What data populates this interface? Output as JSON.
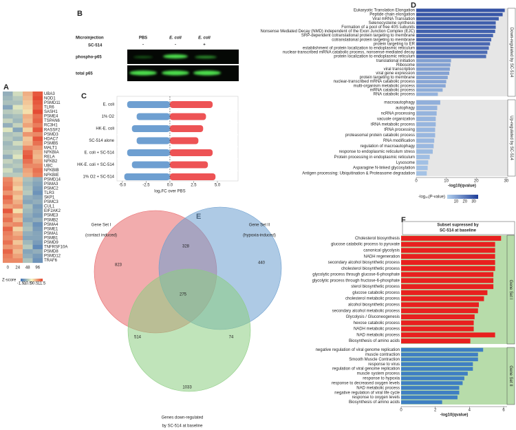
{
  "chart_data": [
    {
      "type": "heatmap",
      "label": "A",
      "rows": [
        "UBA3",
        "NOD1",
        "PSMD11",
        "TLR6",
        "SASH1",
        "PSME4",
        "TSPAN6",
        "RC3H1",
        "RASSF2",
        "PSMD3",
        "HDAC7",
        "PSMB5",
        "MALT1",
        "NFKBIA",
        "RELA",
        "NFKB2",
        "UBC",
        "NFKBIB",
        "NFKBIE",
        "PSMD14",
        "PSMA3",
        "PSMC2",
        "TLR3",
        "SKP1",
        "PSMC3",
        "CUL1",
        "EIF2AK2",
        "PSME3",
        "PSMB2",
        "PSMA4",
        "PSME1",
        "PSMA1",
        "PSMB1",
        "PSMD9",
        "TNFRSF10A",
        "PSMD8",
        "PSMD12",
        "TRAF6"
      ],
      "columns": [
        0,
        24,
        48,
        96
      ],
      "values": [
        [
          -0.8,
          -0.3,
          0.6,
          1.3
        ],
        [
          -0.7,
          -0.5,
          0.5,
          1.4
        ],
        [
          -0.6,
          -0.6,
          0.4,
          1.3
        ],
        [
          -0.9,
          -0.2,
          0.3,
          1.2
        ],
        [
          -0.5,
          -0.4,
          0.2,
          1.4
        ],
        [
          -0.7,
          -0.6,
          0.6,
          1.1
        ],
        [
          -0.4,
          -0.7,
          0.5,
          1.2
        ],
        [
          -0.8,
          -0.4,
          0.7,
          1.0
        ],
        [
          -0.2,
          -0.9,
          0.3,
          1.3
        ],
        [
          -0.6,
          -0.5,
          0.8,
          0.9
        ],
        [
          -0.5,
          -0.7,
          0.4,
          1.3
        ],
        [
          -0.7,
          -0.3,
          0.5,
          1.1
        ],
        [
          -0.6,
          -0.6,
          0.9,
          0.8
        ],
        [
          -0.5,
          -0.4,
          1.2,
          0.6
        ],
        [
          -0.8,
          -0.2,
          1.3,
          0.5
        ],
        [
          -0.4,
          -0.6,
          1.1,
          0.7
        ],
        [
          -0.6,
          -0.5,
          0.9,
          0.9
        ],
        [
          -0.3,
          -0.7,
          0.7,
          1.1
        ],
        [
          -0.5,
          -0.5,
          0.6,
          1.0
        ],
        [
          0.9,
          0.4,
          -0.6,
          -0.8
        ],
        [
          1.0,
          0.5,
          -0.7,
          -0.9
        ],
        [
          1.1,
          0.3,
          -0.6,
          -1.0
        ],
        [
          0.8,
          0.6,
          -0.5,
          -1.1
        ],
        [
          1.2,
          0.4,
          -0.8,
          -0.9
        ],
        [
          1.0,
          0.6,
          -0.9,
          -0.8
        ],
        [
          0.7,
          0.8,
          -0.6,
          -1.0
        ],
        [
          1.3,
          0.2,
          -0.7,
          -0.9
        ],
        [
          0.9,
          0.7,
          -0.8,
          -1.0
        ],
        [
          1.1,
          0.5,
          -0.9,
          -0.8
        ],
        [
          0.8,
          0.9,
          -0.7,
          -1.1
        ],
        [
          1.2,
          0.3,
          -0.6,
          -1.0
        ],
        [
          1.0,
          0.6,
          -0.8,
          -0.9
        ],
        [
          0.9,
          0.8,
          -0.9,
          -0.9
        ],
        [
          1.1,
          0.4,
          -0.7,
          -1.0
        ],
        [
          0.8,
          0.7,
          -0.5,
          -1.2
        ],
        [
          1.2,
          0.5,
          -0.9,
          -0.8
        ],
        [
          1.0,
          0.7,
          -0.8,
          -1.0
        ],
        [
          0.9,
          0.9,
          -0.6,
          -1.1
        ]
      ],
      "colorbar_label": "Z-score",
      "zlim": [
        -1.5,
        1.5
      ],
      "zticks": [
        -1.5,
        -1,
        -0.5,
        0,
        0.5,
        1,
        1.5
      ],
      "colormap": [
        "#3b6fb6",
        "#f7f7c0",
        "#e3402a"
      ]
    },
    {
      "type": "blot",
      "label": "B",
      "row_title": "Microinjection",
      "row_title_2": "SC-514",
      "lanes": [
        "PBS",
        "E. coli",
        "E. coli"
      ],
      "sc514": [
        "-",
        "-",
        "+"
      ],
      "bands": [
        "phospho-p65",
        "total p65"
      ]
    },
    {
      "type": "strip",
      "label": "C",
      "categories": [
        "E. coli",
        "1% O2",
        "HK-E. coli",
        "SC-514 alone",
        "E. coli + SC-514",
        "HK-E. coli + SC-514",
        "1% O2 + SC-514"
      ],
      "down_min": [
        -4.5,
        -3.5,
        -4,
        -3.5,
        -4.5,
        -4,
        -4.8
      ],
      "up_max": [
        4.5,
        3.8,
        3.5,
        3,
        4.5,
        4,
        4.8
      ],
      "down_color": "#3d7fc1",
      "up_color": "#e8282b",
      "xlim": [
        -5.5,
        7.1
      ],
      "xticks": [
        {
          "value": -5,
          "label": "-5.0"
        },
        -2.5,
        {
          "value": 0,
          "label": "0.0"
        },
        2.5,
        {
          "value": 5,
          "label": "5.0"
        }
      ],
      "xlabel": "log₂FC over PBS"
    },
    {
      "type": "bar",
      "orientation": "horizontal",
      "label": "D",
      "groups": [
        {
          "name": "Down-regulated by SC-514",
          "categories": [
            "Eukaryotic Translation Elongation",
            "Peptide chain elongation",
            "Viral mRNA Translation",
            "Selenocysteine synthesis",
            "Formation of a pool of free 40S subunits",
            "Nonsense Mediated Decay (NMD) independent of the Exon Junction Complex (EJC)",
            "SRP-dependent cotranslational protein targeting to membrane",
            "cotranslational protein targeting to membrane",
            "protein targeting to ER",
            "establishment of protein localization to endoplasmic reticulum",
            "nuclear-transcribed mRNA catabolic process, nonsense-mediated decay",
            "protein localization to endoplasmic reticulum",
            "translational initiation",
            "Ribosome",
            "viral transcription",
            "viral gene expression",
            "protein targeting to membrane",
            "nuclear-transcribed mRNA catabolic process",
            "multi-organism metabolic process",
            "mRNA catabolic process",
            "RNA catabolic process"
          ],
          "values": [
            29.5,
            28.8,
            27.5,
            26.5,
            26.5,
            26.3,
            25.6,
            25,
            24.6,
            24.2,
            23.7,
            23.3,
            11.6,
            11.4,
            11.2,
            11,
            10.5,
            10,
            9.8,
            8.8,
            7.2
          ]
        },
        {
          "name": "Up-regulated by SC-514",
          "categories": [
            "macroautophagy",
            "autophagy",
            "ncRNA processing",
            "vacuole organization",
            "tRNA metabolic process",
            "tRNA processing",
            "proteasomal protein catabolic process",
            "RNA modification",
            "regulation of macroautophagy",
            "response to endoplasmic reticulum stress",
            "Protein processing in endoplasmic reticulum",
            "Lysosome",
            "Asparagine N-linked glycosylation",
            "Antigen processing: Ubiquitination & Proteasome degradation"
          ],
          "values": [
            8,
            7,
            6.8,
            6.5,
            6.5,
            6.3,
            6.3,
            6,
            5.8,
            5.5,
            4.5,
            4,
            3.8,
            3.5
          ]
        }
      ],
      "xlim": [
        0,
        30.5
      ],
      "xticks": [
        0,
        10,
        20,
        30
      ],
      "xlabel": "-log10(qvalue)",
      "legend_title": "-log₁₀(P-value)",
      "color_lim": [
        0,
        35
      ],
      "legend_ticks": [
        10,
        20,
        30
      ],
      "colormap": [
        "#b3d1ee",
        "#1d3c98"
      ],
      "panel_color": "#e6e6e6",
      "strip_color": "#ffffff"
    },
    {
      "type": "venn",
      "label": "E",
      "sets": [
        {
          "name": "Gene Set I",
          "subtitle": "(contact induced)",
          "color": "#e8676a"
        },
        {
          "name": "Gene Set II",
          "subtitle": "(hypoxia-induced)",
          "color": "#6c9fcf"
        },
        {
          "name": "Genes down-regulated",
          "subtitle": "by SC-514 at baseline",
          "color": "#8ccd82"
        }
      ],
      "regions": {
        "I": 823,
        "I_II": 328,
        "II": 440,
        "I_II_III": 275,
        "I_III": 514,
        "II_III": 74,
        "III": 1033
      }
    },
    {
      "type": "bar",
      "orientation": "horizontal",
      "label": "F",
      "title_lines": [
        "Subset supressed by",
        "SC-514 at baseline"
      ],
      "groups": [
        {
          "name": "Gene Set I",
          "color": "#e8201f",
          "categories": [
            "Cholesterol biosynthesis",
            "glucose catabolic process to pyruvate",
            "canonical glycolysis",
            "NADH regeneration",
            "secondary alcohol biosynthetic process",
            "cholesterol biosynthetic process",
            "glycolytic process through glucose-6-phosphate",
            "glycolytic process through fructose-6-phosphate",
            "sterol biosynthetic process",
            "glucose catabolic process",
            "cholesterol metabolic process",
            "alcohol biosynthetic process",
            "secondary alcohol metabolic process",
            "Glycolysis / Gluconeogenesis",
            "hexose catabolic process",
            "NADH metabolic process",
            "NAD metabolic process",
            "Biosynthesis of amino acids"
          ],
          "values": [
            5.85,
            5.5,
            5.5,
            5.5,
            5.5,
            5.5,
            5.4,
            5.4,
            5.4,
            5.05,
            4.85,
            4.55,
            4.5,
            4.3,
            4.25,
            4.25,
            5.5,
            4.05
          ]
        },
        {
          "name": "Gene Set II",
          "color": "#3f7fc3",
          "categories": [
            "negative regulation of viral genome replication",
            "muscle contraction",
            "Smooth Muscle Contraction",
            "response to virus",
            "regulation of viral genome replication",
            "muscle system process",
            "response to hypoxia",
            "response to decreased oxygen levels",
            "NAD metabolic process",
            "negative regulation of viral life cycle",
            "response to oxygen levels",
            "Biosynthesis of amino acids"
          ],
          "values": [
            4.8,
            4.5,
            4.5,
            4.2,
            4.2,
            3.9,
            3.7,
            3.6,
            3.4,
            3.4,
            3.3,
            2.4
          ]
        }
      ],
      "xlim": [
        0,
        6.2
      ],
      "xticks": [
        0,
        2,
        4,
        6
      ],
      "xlabel": "-log10(qvalue)",
      "panel_color": "#b7dcaa",
      "strip_color": "#b7dcaa"
    }
  ]
}
